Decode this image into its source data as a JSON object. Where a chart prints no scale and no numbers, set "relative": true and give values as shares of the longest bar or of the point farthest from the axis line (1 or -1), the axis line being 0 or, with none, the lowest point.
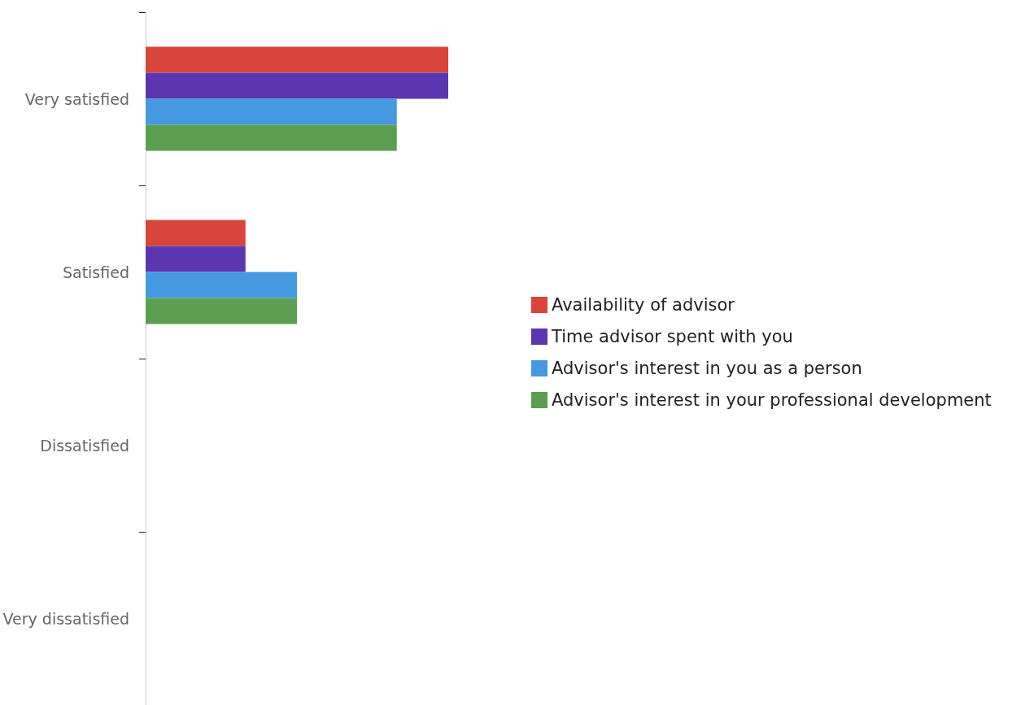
{
  "chart_data": {
    "type": "bar",
    "orientation": "horizontal",
    "relative": true,
    "categories": [
      "Very satisfied",
      "Satisfied",
      "Dissatisfied",
      "Very dissatisfied"
    ],
    "series": [
      {
        "name": "Availability of advisor",
        "color": "#d9443b",
        "values": [
          1,
          0.33,
          0,
          0
        ]
      },
      {
        "name": "Time advisor spent with you",
        "color": "#5b36b0",
        "values": [
          1,
          0.33,
          0,
          0
        ]
      },
      {
        "name": "Advisor's interest in you as a person",
        "color": "#4499e0",
        "values": [
          0.83,
          0.5,
          0,
          0
        ]
      },
      {
        "name": "Advisor's interest in your professional development",
        "color": "#5c9e50",
        "values": [
          0.83,
          0.5,
          0,
          0
        ]
      }
    ],
    "legend": "right"
  }
}
